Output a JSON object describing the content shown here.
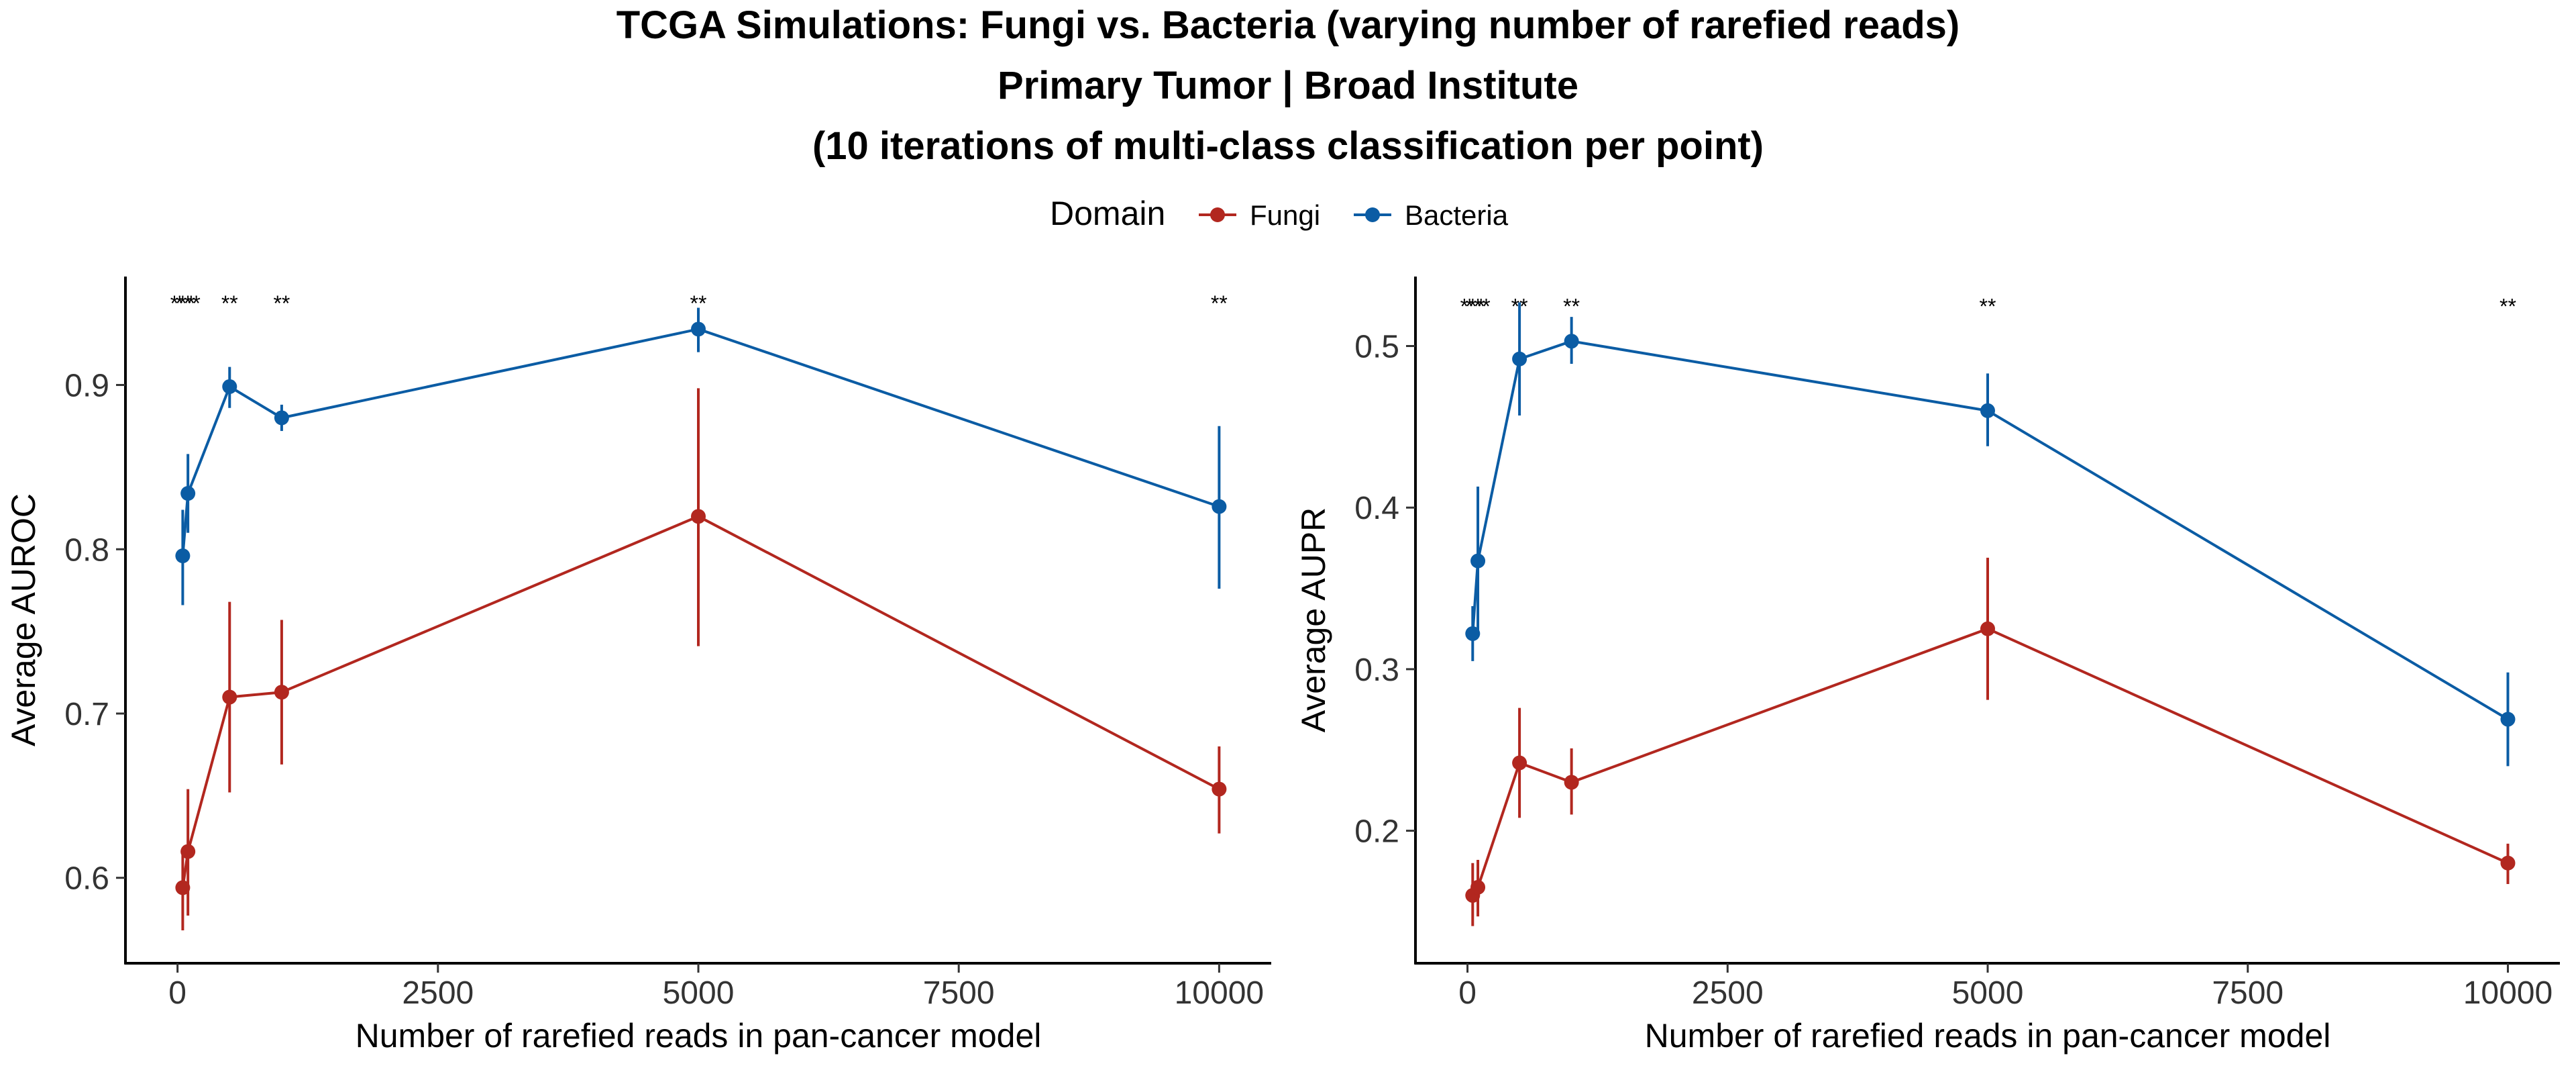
{
  "title": {
    "line1": "TCGA Simulations: Fungi vs. Bacteria (varying number of rarefied reads)",
    "line2": "Primary Tumor | Broad Institute",
    "line3": "(10 iterations of multi-class classification per point)"
  },
  "legend": {
    "title": "Domain",
    "placement": "top-center",
    "items": [
      {
        "label": "Fungi",
        "color": "#B2271F"
      },
      {
        "label": "Bacteria",
        "color": "#0B5CA4"
      }
    ]
  },
  "chart_data": [
    {
      "type": "line",
      "xlabel": "Number of rarefied reads in pan-cancer model",
      "ylabel": "Average AUROC",
      "xlim": [
        -500,
        10500
      ],
      "ylim": [
        0.548,
        0.966
      ],
      "x_ticks": [
        0,
        2500,
        5000,
        7500,
        10000
      ],
      "y_ticks": [
        0.6,
        0.7,
        0.8,
        0.9
      ],
      "y_tick_labels": [
        "0.6",
        "0.7",
        "0.8",
        "0.9"
      ],
      "grid": false,
      "x": [
        50,
        100,
        500,
        1000,
        5000,
        10000
      ],
      "significance_label_y": 0.95,
      "significance": [
        {
          "x": 50,
          "label": "***"
        },
        {
          "x": 100,
          "label": "***"
        },
        {
          "x": 500,
          "label": "**"
        },
        {
          "x": 1000,
          "label": "**"
        },
        {
          "x": 5000,
          "label": "**"
        },
        {
          "x": 10000,
          "label": "**"
        }
      ],
      "series": [
        {
          "name": "Fungi",
          "color": "#B2271F",
          "values": [
            0.594,
            0.616,
            0.71,
            0.713,
            0.82,
            0.654
          ],
          "err_low": [
            0.568,
            0.577,
            0.652,
            0.669,
            0.741,
            0.627
          ],
          "err_high": [
            0.616,
            0.654,
            0.768,
            0.757,
            0.898,
            0.68
          ]
        },
        {
          "name": "Bacteria",
          "color": "#0B5CA4",
          "values": [
            0.796,
            0.834,
            0.899,
            0.88,
            0.934,
            0.826
          ],
          "err_low": [
            0.766,
            0.81,
            0.886,
            0.872,
            0.92,
            0.776
          ],
          "err_high": [
            0.824,
            0.858,
            0.911,
            0.888,
            0.947,
            0.875
          ]
        }
      ]
    },
    {
      "type": "line",
      "xlabel": "Number of rarefied reads in pan-cancer model",
      "ylabel": "Average AUPR",
      "xlim": [
        -500,
        10500
      ],
      "ylim": [
        0.118,
        0.543
      ],
      "x_ticks": [
        0,
        2500,
        5000,
        7500,
        10000
      ],
      "y_ticks": [
        0.2,
        0.3,
        0.4,
        0.5
      ],
      "y_tick_labels": [
        "0.2",
        "0.3",
        "0.4",
        "0.5"
      ],
      "grid": false,
      "x": [
        50,
        100,
        500,
        1000,
        5000,
        10000
      ],
      "significance_label_y": 0.525,
      "significance": [
        {
          "x": 50,
          "label": "***"
        },
        {
          "x": 100,
          "label": "***"
        },
        {
          "x": 500,
          "label": "**"
        },
        {
          "x": 1000,
          "label": "**"
        },
        {
          "x": 5000,
          "label": "**"
        },
        {
          "x": 10000,
          "label": "**"
        }
      ],
      "series": [
        {
          "name": "Fungi",
          "color": "#B2271F",
          "values": [
            0.16,
            0.165,
            0.242,
            0.23,
            0.325,
            0.18
          ],
          "err_low": [
            0.141,
            0.147,
            0.208,
            0.21,
            0.281,
            0.167
          ],
          "err_high": [
            0.18,
            0.182,
            0.276,
            0.251,
            0.369,
            0.192
          ]
        },
        {
          "name": "Bacteria",
          "color": "#0B5CA4",
          "values": [
            0.322,
            0.367,
            0.492,
            0.503,
            0.46,
            0.269
          ],
          "err_low": [
            0.305,
            0.321,
            0.457,
            0.489,
            0.438,
            0.24
          ],
          "err_high": [
            0.339,
            0.413,
            0.527,
            0.518,
            0.483,
            0.298
          ]
        }
      ]
    }
  ]
}
